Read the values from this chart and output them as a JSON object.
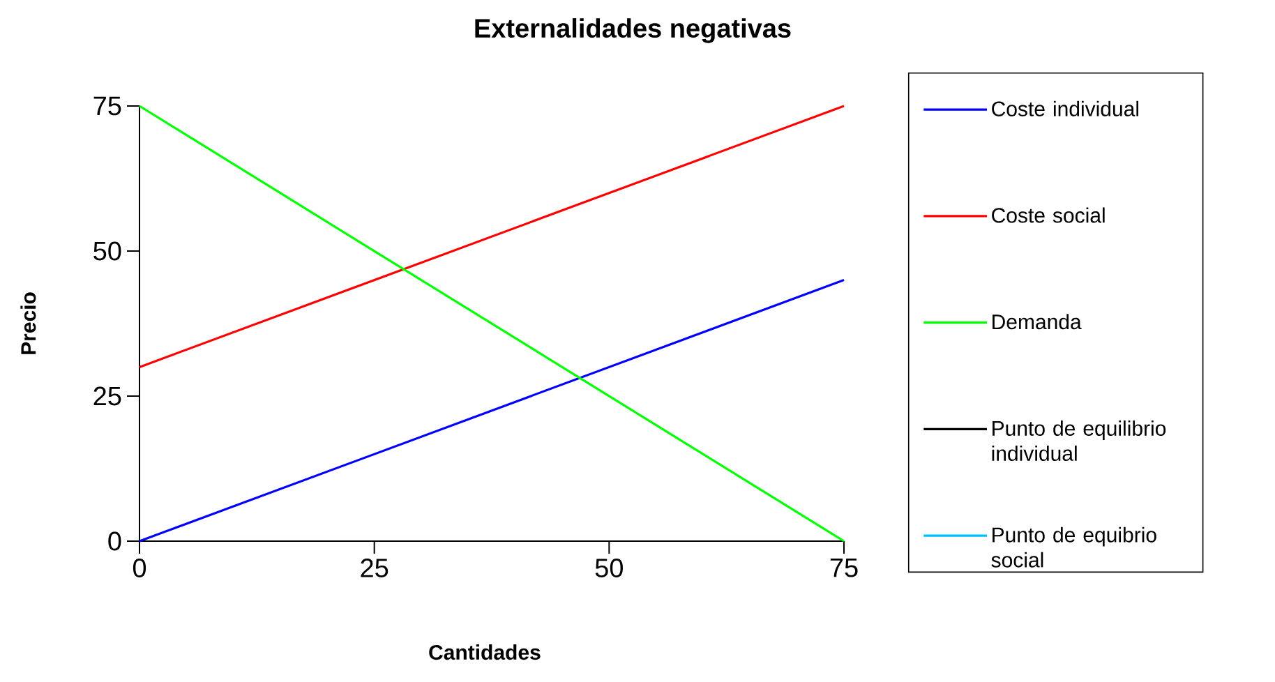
{
  "chart_data": {
    "type": "line",
    "title": "Externalidades negativas",
    "xlabel": "Cantidades",
    "ylabel": "Precio",
    "xlim": [
      0,
      75
    ],
    "ylim": [
      0,
      75
    ],
    "xticks": [
      0,
      25,
      50,
      75
    ],
    "yticks": [
      0,
      25,
      50,
      75
    ],
    "x": [
      0,
      75
    ],
    "grid": false,
    "legend": "right",
    "marker": "none",
    "line_style": "solid",
    "series": [
      {
        "name": "Coste individual",
        "color": "#0000ff",
        "values": [
          0,
          45
        ]
      },
      {
        "name": "Coste social",
        "color": "#ff0000",
        "values": [
          30,
          75
        ]
      },
      {
        "name": "Demanda",
        "color": "#00ff00",
        "values": [
          75,
          0
        ]
      },
      {
        "name": "Punto de equilibrio individual",
        "color": "#000000",
        "values": [
          null,
          null
        ]
      },
      {
        "name": "Punto de equibrio social",
        "color": "#00bfff",
        "values": [
          null,
          null
        ]
      }
    ]
  }
}
